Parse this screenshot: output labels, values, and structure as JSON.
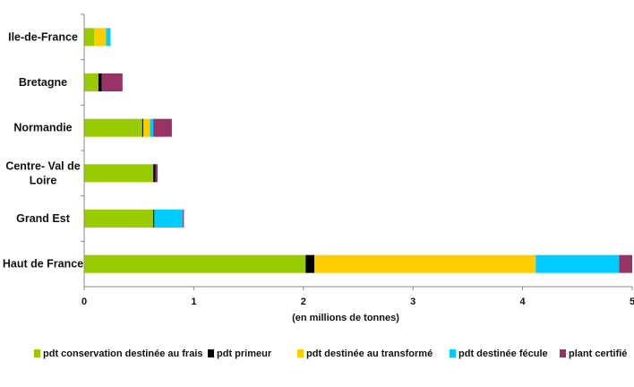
{
  "chart_data": {
    "type": "bar",
    "orientation": "horizontal",
    "stacked": true,
    "categories": [
      "Ile-de-France",
      "Bretagne",
      "Normandie",
      "Centre- Val de Loire",
      "Grand Est",
      "Haut de France"
    ],
    "series": [
      {
        "name": "pdt conservation destinée au frais",
        "color": "#99cc00",
        "values": [
          0.09,
          0.13,
          0.53,
          0.63,
          0.63,
          2.02
        ]
      },
      {
        "name": "pdt primeur",
        "color": "#000000",
        "values": [
          0.0,
          0.03,
          0.01,
          0.02,
          0.01,
          0.08
        ]
      },
      {
        "name": "pdt destinée au transformé",
        "color": "#ffcc00",
        "values": [
          0.11,
          0.0,
          0.06,
          0.0,
          0.0,
          2.02
        ]
      },
      {
        "name": "pdt destinée fécule",
        "color": "#00ccff",
        "values": [
          0.04,
          0.0,
          0.03,
          0.0,
          0.26,
          0.76
        ]
      },
      {
        "name": "plant certifié",
        "color": "#993366",
        "values": [
          0.0,
          0.19,
          0.17,
          0.02,
          0.01,
          0.12
        ]
      }
    ],
    "xlabel": "(en millions de tonnes)",
    "xlim": [
      0,
      5
    ],
    "xticks": [
      "0",
      "1",
      "2",
      "3",
      "4",
      "5"
    ],
    "grid": false,
    "legend_position": "bottom"
  }
}
